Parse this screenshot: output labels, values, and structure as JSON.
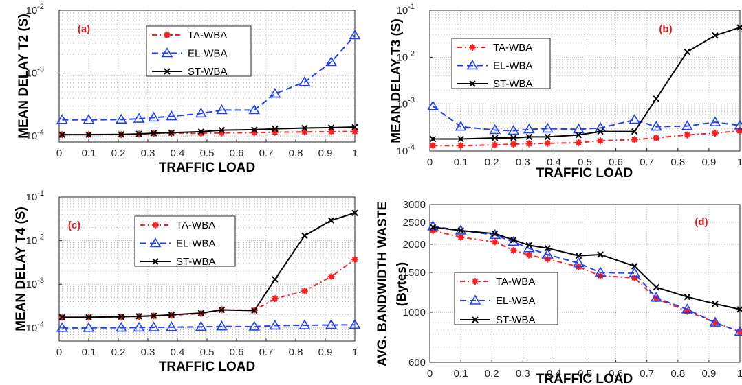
{
  "figure": {
    "xlabel": "TRAFFIC LOAD"
  },
  "series_styles": [
    {
      "name": "TA-WBA",
      "color": "#ff1f1f",
      "dash": "7,4,2,4",
      "marker": "star"
    },
    {
      "name": "EL-WBA",
      "color": "#1f3fff",
      "dash": "9,5",
      "marker": "triangle"
    },
    {
      "name": "ST-WBA",
      "color": "#000000",
      "dash": "",
      "marker": "x"
    }
  ],
  "chart_data": [
    {
      "type": "line",
      "tag": "(a)",
      "xlabel": "TRAFFIC LOAD",
      "ylabel": "MEAN DELAY T2 (S)",
      "xlim": [
        0,
        1
      ],
      "ylim": [
        8e-05,
        0.01
      ],
      "yscale": "log",
      "xticks": [
        "0",
        "0.1",
        "0.2",
        "0.3",
        "0.4",
        "0.5",
        "0.6",
        "0.7",
        "0.8",
        "0.9",
        "1"
      ],
      "yticks": [
        {
          "value": 0.0001,
          "base": "10",
          "exp": "-4"
        },
        {
          "value": 0.001,
          "base": "10",
          "exp": "-3"
        },
        {
          "value": 0.01,
          "base": "10",
          "exp": "-2"
        }
      ],
      "grid": true,
      "legend": "upper-center",
      "x": [
        0.01,
        0.1,
        0.21,
        0.27,
        0.32,
        0.38,
        0.48,
        0.55,
        0.66,
        0.73,
        0.83,
        0.92,
        1.0
      ],
      "series": [
        {
          "name": "TA-WBA",
          "values": [
            0.000105,
            0.000105,
            0.000105,
            0.000107,
            0.00011,
            0.000111,
            0.00011,
            0.000112,
            0.000113,
            0.000115,
            0.000116,
            0.000117,
            0.000118
          ]
        },
        {
          "name": "EL-WBA",
          "values": [
            0.00018,
            0.00018,
            0.000182,
            0.000188,
            0.000196,
            0.000205,
            0.000228,
            0.000258,
            0.000258,
            0.00047,
            0.00072,
            0.0015,
            0.004
          ]
        },
        {
          "name": "ST-WBA",
          "values": [
            0.000105,
            0.000105,
            0.000106,
            0.000108,
            0.000111,
            0.000113,
            0.000117,
            0.000124,
            0.000126,
            0.00013,
            0.000134,
            0.000136,
            0.000139
          ]
        }
      ]
    },
    {
      "type": "line",
      "tag": "(b)",
      "xlabel": "TRAFFIC LOAD",
      "ylabel": "MEAN DELAY T3 (S)",
      "xlim": [
        0,
        1
      ],
      "ylim": [
        0.0001,
        0.1
      ],
      "yscale": "log",
      "xticks": [
        "0",
        "0.1",
        "0.2",
        "0.3",
        "0.4",
        "0.5",
        "0.6",
        "0.7",
        "0.8",
        "0.9",
        "1"
      ],
      "yticks": [
        {
          "value": 0.0001,
          "base": "10",
          "exp": "-4"
        },
        {
          "value": 0.001,
          "base": "10",
          "exp": "-3"
        },
        {
          "value": 0.01,
          "base": "10",
          "exp": "-2"
        },
        {
          "value": 0.1,
          "base": "10",
          "exp": "-1"
        }
      ],
      "grid": true,
      "legend": "upper-left",
      "x": [
        0.01,
        0.1,
        0.21,
        0.27,
        0.32,
        0.38,
        0.48,
        0.55,
        0.66,
        0.73,
        0.83,
        0.92,
        1.0
      ],
      "series": [
        {
          "name": "TA-WBA",
          "values": [
            0.00013,
            0.00013,
            0.000135,
            0.00014,
            0.000143,
            0.000146,
            0.00015,
            0.000165,
            0.000175,
            0.00019,
            0.00022,
            0.00024,
            0.00027
          ]
        },
        {
          "name": "EL-WBA",
          "values": [
            0.0009,
            0.00033,
            0.00028,
            0.00027,
            0.00029,
            0.0003,
            0.00029,
            0.00031,
            0.00046,
            0.00033,
            0.00034,
            0.00041,
            0.00035
          ]
        },
        {
          "name": "ST-WBA",
          "values": [
            0.00018,
            0.00018,
            0.00019,
            0.00019,
            0.0002,
            0.0002,
            0.00022,
            0.00026,
            0.00026,
            0.0013,
            0.013,
            0.029,
            0.043
          ]
        }
      ]
    },
    {
      "type": "line",
      "tag": "(c)",
      "xlabel": "TRAFFIC LOAD",
      "ylabel": "MEAN DELAY T4 (S)",
      "xlim": [
        0,
        1
      ],
      "ylim": [
        5e-05,
        0.1
      ],
      "yscale": "log",
      "xticks": [
        "0",
        "0.1",
        "0.2",
        "0.3",
        "0.4",
        "0.5",
        "0.6",
        "0.7",
        "0.8",
        "0.9",
        "1"
      ],
      "yticks": [
        {
          "value": 0.0001,
          "base": "10",
          "exp": "-4"
        },
        {
          "value": 0.001,
          "base": "10",
          "exp": "-3"
        },
        {
          "value": 0.01,
          "base": "10",
          "exp": "-2"
        },
        {
          "value": 0.1,
          "base": "10",
          "exp": "-1"
        }
      ],
      "grid": true,
      "legend": "upper-center",
      "x": [
        0.01,
        0.1,
        0.21,
        0.27,
        0.32,
        0.38,
        0.48,
        0.55,
        0.66,
        0.73,
        0.83,
        0.92,
        1.0
      ],
      "series": [
        {
          "name": "TA-WBA",
          "values": [
            0.000175,
            0.000175,
            0.000178,
            0.000183,
            0.000188,
            0.000195,
            0.000215,
            0.00026,
            0.000255,
            0.00047,
            0.0007,
            0.0015,
            0.0037
          ]
        },
        {
          "name": "EL-WBA",
          "values": [
            0.0001,
            0.0001,
            0.000101,
            0.000102,
            0.000103,
            0.000104,
            0.000106,
            0.000108,
            0.000107,
            0.000113,
            0.000115,
            0.000117,
            0.000118
          ]
        },
        {
          "name": "ST-WBA",
          "values": [
            0.000175,
            0.000176,
            0.00018,
            0.000185,
            0.00019,
            0.0002,
            0.00022,
            0.00026,
            0.00025,
            0.0013,
            0.013,
            0.029,
            0.043
          ]
        }
      ]
    },
    {
      "type": "line",
      "tag": "(d)",
      "xlabel": "TRAFFIC LOAD",
      "ylabel": "AVG. BANDWIDTH WASTE",
      "ylabel2": "(Bytes)",
      "xlim": [
        0,
        1
      ],
      "ylim": [
        600,
        3000
      ],
      "yscale": "log",
      "xticks": [
        "0",
        "0.1",
        "0.2",
        "0.3",
        "0.4",
        "0.5",
        "0.6",
        "0.7",
        "0.8",
        "0.9",
        "1"
      ],
      "yticks": [
        {
          "value": 600,
          "label": "600"
        },
        {
          "value": 1000,
          "label": "1000"
        },
        {
          "value": 1500,
          "label": "1500"
        },
        {
          "value": 2000,
          "label": "2000"
        },
        {
          "value": 2500,
          "label": "2500"
        },
        {
          "value": 3000,
          "label": "3000"
        }
      ],
      "grid": true,
      "legend": "lower-left",
      "x": [
        0.01,
        0.1,
        0.21,
        0.27,
        0.32,
        0.38,
        0.48,
        0.55,
        0.66,
        0.73,
        0.83,
        0.92,
        1.0
      ],
      "series": [
        {
          "name": "TA-WBA",
          "values": [
            2300,
            2150,
            2050,
            1880,
            1790,
            1720,
            1590,
            1450,
            1420,
            1150,
            1010,
            900,
            820
          ]
        },
        {
          "name": "EL-WBA",
          "values": [
            2400,
            2300,
            2200,
            2050,
            1920,
            1800,
            1650,
            1500,
            1490,
            1160,
            1030,
            900,
            820
          ]
        },
        {
          "name": "ST-WBA",
          "values": [
            2380,
            2300,
            2230,
            2090,
            1980,
            1920,
            1780,
            1800,
            1600,
            1290,
            1170,
            1090,
            1030
          ]
        }
      ]
    }
  ]
}
